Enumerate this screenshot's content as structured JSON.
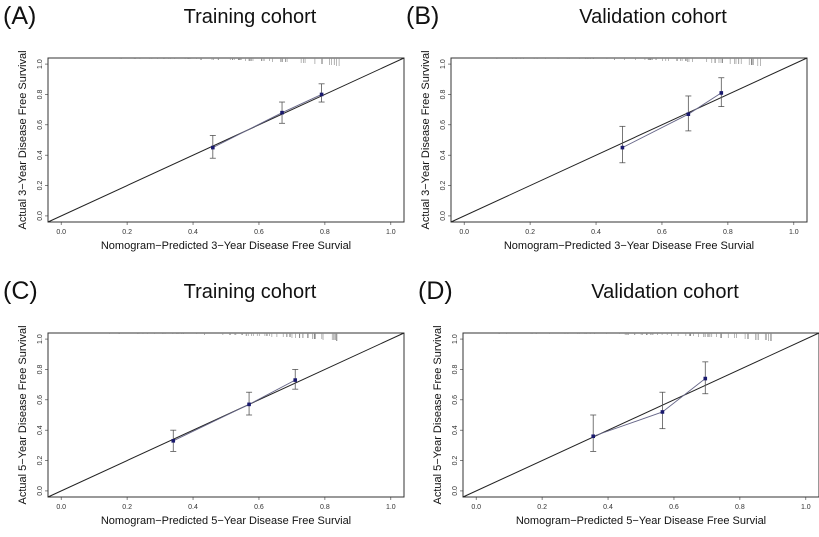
{
  "chart_data": [
    {
      "type": "scatter",
      "panel_label": "(A)",
      "title": "Training cohort",
      "xlabel": "Nomogram−Predicted 3−Year Disease Free Survial",
      "ylabel": "Actual 3−Year Disease Free Survival",
      "xlim": [
        -0.04,
        1.04
      ],
      "ylim": [
        -0.04,
        1.04
      ],
      "xticks": [
        "0.0",
        "0.2",
        "0.4",
        "0.6",
        "0.8",
        "1.0"
      ],
      "yticks": [
        "0.0",
        "0.2",
        "0.4",
        "0.6",
        "0.8",
        "1.0"
      ],
      "reference_line": "y = x",
      "points": [
        {
          "x": 0.46,
          "y": 0.45,
          "lower": 0.38,
          "upper": 0.53
        },
        {
          "x": 0.67,
          "y": 0.68,
          "lower": 0.61,
          "upper": 0.75
        },
        {
          "x": 0.79,
          "y": 0.8,
          "lower": 0.75,
          "upper": 0.87
        }
      ]
    },
    {
      "type": "scatter",
      "panel_label": "(B)",
      "title": "Validation cohort",
      "xlabel": "Nomogram−Predicted 3−Year Disease Free Survial",
      "ylabel": "Actual 3−Year Disease Free Survival",
      "xlim": [
        -0.04,
        1.04
      ],
      "ylim": [
        -0.04,
        1.04
      ],
      "xticks": [
        "0.0",
        "0.2",
        "0.4",
        "0.6",
        "0.8",
        "1.0"
      ],
      "yticks": [
        "0.0",
        "0.2",
        "0.4",
        "0.6",
        "0.8",
        "1.0"
      ],
      "reference_line": "y = x",
      "points": [
        {
          "x": 0.48,
          "y": 0.45,
          "lower": 0.35,
          "upper": 0.59
        },
        {
          "x": 0.68,
          "y": 0.67,
          "lower": 0.56,
          "upper": 0.79
        },
        {
          "x": 0.78,
          "y": 0.81,
          "lower": 0.72,
          "upper": 0.91
        }
      ]
    },
    {
      "type": "scatter",
      "panel_label": "(C)",
      "title": "Training cohort",
      "xlabel": "Nomogram−Predicted 5−Year Disease Free Survial",
      "ylabel": "Actual 5−Year Disease Free Survival",
      "xlim": [
        -0.04,
        1.04
      ],
      "ylim": [
        -0.04,
        1.04
      ],
      "xticks": [
        "0.0",
        "0.2",
        "0.4",
        "0.6",
        "0.8",
        "1.0"
      ],
      "yticks": [
        "0.0",
        "0.2",
        "0.4",
        "0.6",
        "0.8",
        "1.0"
      ],
      "reference_line": "y = x",
      "points": [
        {
          "x": 0.34,
          "y": 0.33,
          "lower": 0.26,
          "upper": 0.4
        },
        {
          "x": 0.57,
          "y": 0.57,
          "lower": 0.5,
          "upper": 0.65
        },
        {
          "x": 0.71,
          "y": 0.73,
          "lower": 0.67,
          "upper": 0.8
        }
      ]
    },
    {
      "type": "scatter",
      "panel_label": "(D)",
      "title": "Validation cohort",
      "xlabel": "Nomogram−Predicted 5−Year Disease Free Survial",
      "ylabel": "Actual 5−Year Disease Free Survival",
      "xlim": [
        -0.04,
        1.04
      ],
      "ylim": [
        -0.04,
        1.04
      ],
      "xticks": [
        "0.0",
        "0.2",
        "0.4",
        "0.6",
        "0.8",
        "1.0"
      ],
      "yticks": [
        "0.0",
        "0.2",
        "0.4",
        "0.6",
        "0.8",
        "1.0"
      ],
      "reference_line": "y = x",
      "points": [
        {
          "x": 0.355,
          "y": 0.36,
          "lower": 0.26,
          "upper": 0.5
        },
        {
          "x": 0.565,
          "y": 0.52,
          "lower": 0.41,
          "upper": 0.65
        },
        {
          "x": 0.695,
          "y": 0.74,
          "lower": 0.64,
          "upper": 0.85
        }
      ]
    }
  ],
  "colors": {
    "point": "#1a1a6e",
    "line": "#222222",
    "errorbar": "#555555",
    "rug": "#888888"
  }
}
